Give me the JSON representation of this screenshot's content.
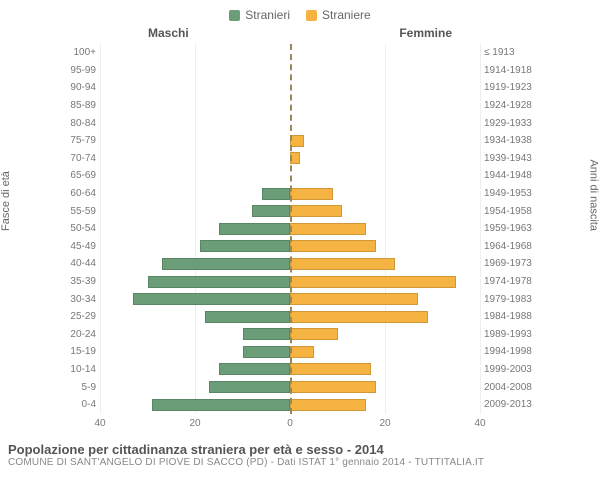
{
  "legend": {
    "male": {
      "label": "Stranieri",
      "color": "#6b9e78"
    },
    "female": {
      "label": "Straniere",
      "color": "#f5b342"
    }
  },
  "side_titles": {
    "male": "Maschi",
    "female": "Femmine"
  },
  "y_axis_left_label": "Fasce di età",
  "y_axis_right_label": "Anni di nascita",
  "title": "Popolazione per cittadinanza straniera per età e sesso - 2014",
  "subtitle": "COMUNE DI SANT'ANGELO DI PIOVE DI SACCO (PD) - Dati ISTAT 1° gennaio 2014 - TUTTITALIA.IT",
  "xlim": 40,
  "xticks": [
    40,
    20,
    0,
    20,
    40
  ],
  "grid_color": "#eeeeee",
  "background_color": "#ffffff",
  "label_fontsize": 10,
  "rows": [
    {
      "age": "100+",
      "birth": "≤ 1913",
      "m": 0,
      "f": 0
    },
    {
      "age": "95-99",
      "birth": "1914-1918",
      "m": 0,
      "f": 0
    },
    {
      "age": "90-94",
      "birth": "1919-1923",
      "m": 0,
      "f": 0
    },
    {
      "age": "85-89",
      "birth": "1924-1928",
      "m": 0,
      "f": 0
    },
    {
      "age": "80-84",
      "birth": "1929-1933",
      "m": 0,
      "f": 0
    },
    {
      "age": "75-79",
      "birth": "1934-1938",
      "m": 0,
      "f": 3
    },
    {
      "age": "70-74",
      "birth": "1939-1943",
      "m": 0,
      "f": 2
    },
    {
      "age": "65-69",
      "birth": "1944-1948",
      "m": 0,
      "f": 0
    },
    {
      "age": "60-64",
      "birth": "1949-1953",
      "m": 6,
      "f": 9
    },
    {
      "age": "55-59",
      "birth": "1954-1958",
      "m": 8,
      "f": 11
    },
    {
      "age": "50-54",
      "birth": "1959-1963",
      "m": 15,
      "f": 16
    },
    {
      "age": "45-49",
      "birth": "1964-1968",
      "m": 19,
      "f": 18
    },
    {
      "age": "40-44",
      "birth": "1969-1973",
      "m": 27,
      "f": 22
    },
    {
      "age": "35-39",
      "birth": "1974-1978",
      "m": 30,
      "f": 35
    },
    {
      "age": "30-34",
      "birth": "1979-1983",
      "m": 33,
      "f": 27
    },
    {
      "age": "25-29",
      "birth": "1984-1988",
      "m": 18,
      "f": 29
    },
    {
      "age": "20-24",
      "birth": "1989-1993",
      "m": 10,
      "f": 10
    },
    {
      "age": "15-19",
      "birth": "1994-1998",
      "m": 10,
      "f": 5
    },
    {
      "age": "10-14",
      "birth": "1999-2003",
      "m": 15,
      "f": 17
    },
    {
      "age": "5-9",
      "birth": "2004-2008",
      "m": 17,
      "f": 18
    },
    {
      "age": "0-4",
      "birth": "2009-2013",
      "m": 29,
      "f": 16
    }
  ]
}
